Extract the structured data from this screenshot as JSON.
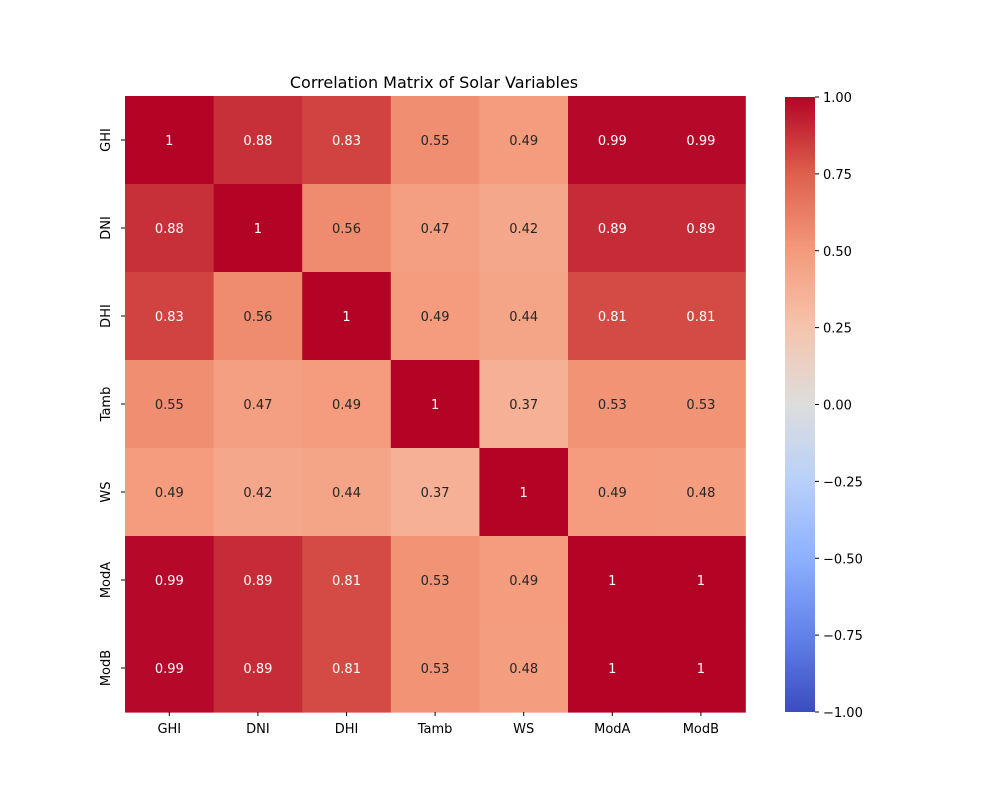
{
  "chart_data": {
    "type": "heatmap",
    "title": "Correlation Matrix of Solar Variables",
    "xlabel": "",
    "ylabel": "",
    "columns": [
      "GHI",
      "DNI",
      "DHI",
      "Tamb",
      "WS",
      "ModA",
      "ModB"
    ],
    "rows": [
      "GHI",
      "DNI",
      "DHI",
      "Tamb",
      "WS",
      "ModA",
      "ModB"
    ],
    "values": [
      [
        1,
        0.88,
        0.83,
        0.55,
        0.49,
        0.99,
        0.99
      ],
      [
        0.88,
        1,
        0.56,
        0.47,
        0.42,
        0.89,
        0.89
      ],
      [
        0.83,
        0.56,
        1,
        0.49,
        0.44,
        0.81,
        0.81
      ],
      [
        0.55,
        0.47,
        0.49,
        1,
        0.37,
        0.53,
        0.53
      ],
      [
        0.49,
        0.42,
        0.44,
        0.37,
        1,
        0.49,
        0.48
      ],
      [
        0.99,
        0.89,
        0.81,
        0.53,
        0.49,
        1,
        1
      ],
      [
        0.99,
        0.89,
        0.81,
        0.53,
        0.48,
        1,
        1
      ]
    ],
    "cell_labels": [
      [
        "1",
        "0.88",
        "0.83",
        "0.55",
        "0.49",
        "0.99",
        "0.99"
      ],
      [
        "0.88",
        "1",
        "0.56",
        "0.47",
        "0.42",
        "0.89",
        "0.89"
      ],
      [
        "0.83",
        "0.56",
        "1",
        "0.49",
        "0.44",
        "0.81",
        "0.81"
      ],
      [
        "0.55",
        "0.47",
        "0.49",
        "1",
        "0.37",
        "0.53",
        "0.53"
      ],
      [
        "0.49",
        "0.42",
        "0.44",
        "0.37",
        "1",
        "0.49",
        "0.48"
      ],
      [
        "0.99",
        "0.89",
        "0.81",
        "0.53",
        "0.49",
        "1",
        "1"
      ],
      [
        "0.99",
        "0.89",
        "0.81",
        "0.53",
        "0.48",
        "1",
        "1"
      ]
    ],
    "vmin": -1.0,
    "vmax": 1.0,
    "colormap": "coolwarm",
    "colorbar": {
      "ticks": [
        1.0,
        0.75,
        0.5,
        0.25,
        0.0,
        -0.25,
        -0.5,
        -0.75,
        -1.0
      ],
      "tick_labels": [
        "1.00",
        "0.75",
        "0.50",
        "0.25",
        "0.00",
        "−0.25",
        "−0.50",
        "−0.75",
        "−1.00"
      ]
    },
    "grid": false
  }
}
